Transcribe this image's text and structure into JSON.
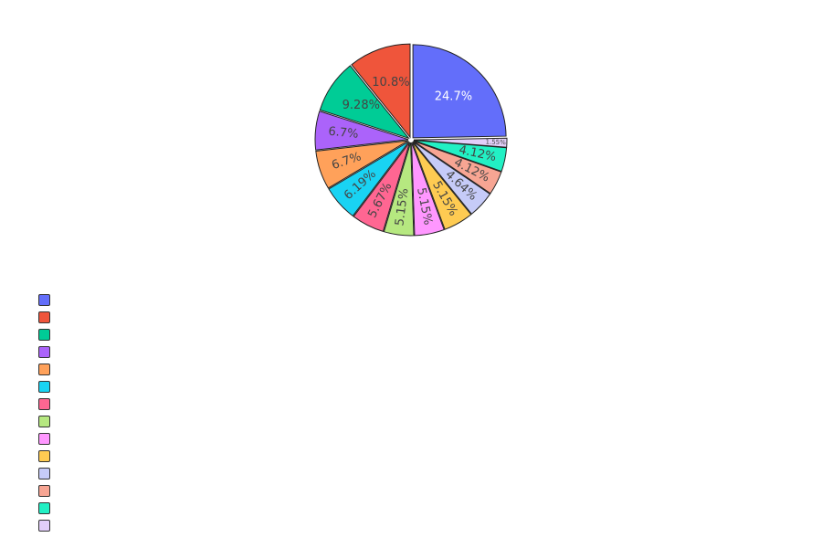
{
  "chart_data": {
    "type": "pie",
    "title": "",
    "slices": [
      {
        "label": "24.7%",
        "value": 24.7,
        "color": "#636efa",
        "text_color": "#ffffff"
      },
      {
        "label": "1.55%",
        "value": 1.55,
        "color": "#e2cef9",
        "text_color": "#444444"
      },
      {
        "label": "4.12%",
        "value": 4.12,
        "color": "#22f0c4",
        "text_color": "#444444"
      },
      {
        "label": "4.12%",
        "value": 4.12,
        "color": "#f7a593",
        "text_color": "#444444"
      },
      {
        "label": "4.64%",
        "value": 4.64,
        "color": "#c6cbf8",
        "text_color": "#444444"
      },
      {
        "label": "5.15%",
        "value": 5.15,
        "color": "#fecb52",
        "text_color": "#444444"
      },
      {
        "label": "5.15%",
        "value": 5.15,
        "color": "#ff97ff",
        "text_color": "#444444"
      },
      {
        "label": "5.15%",
        "value": 5.15,
        "color": "#b6e880",
        "text_color": "#444444"
      },
      {
        "label": "5.67%",
        "value": 5.67,
        "color": "#ff6692",
        "text_color": "#444444"
      },
      {
        "label": "6.19%",
        "value": 6.19,
        "color": "#19d3f3",
        "text_color": "#444444"
      },
      {
        "label": "6.7%",
        "value": 6.7,
        "color": "#ffa15a",
        "text_color": "#444444"
      },
      {
        "label": "6.7%",
        "value": 6.7,
        "color": "#ab63fa",
        "text_color": "#444444"
      },
      {
        "label": "9.28%",
        "value": 9.28,
        "color": "#00cc96",
        "text_color": "#444444"
      },
      {
        "label": "10.8%",
        "value": 10.8,
        "color": "#ef553b",
        "text_color": "#444444"
      }
    ],
    "legend": {
      "position": "bottom-left",
      "colors": [
        "#636efa",
        "#ef553b",
        "#00cc96",
        "#ab63fa",
        "#ffa15a",
        "#19d3f3",
        "#ff6692",
        "#b6e880",
        "#ff97ff",
        "#fecb52",
        "#c6cbf8",
        "#f7a593",
        "#22f0c4",
        "#e2cef9"
      ]
    }
  }
}
